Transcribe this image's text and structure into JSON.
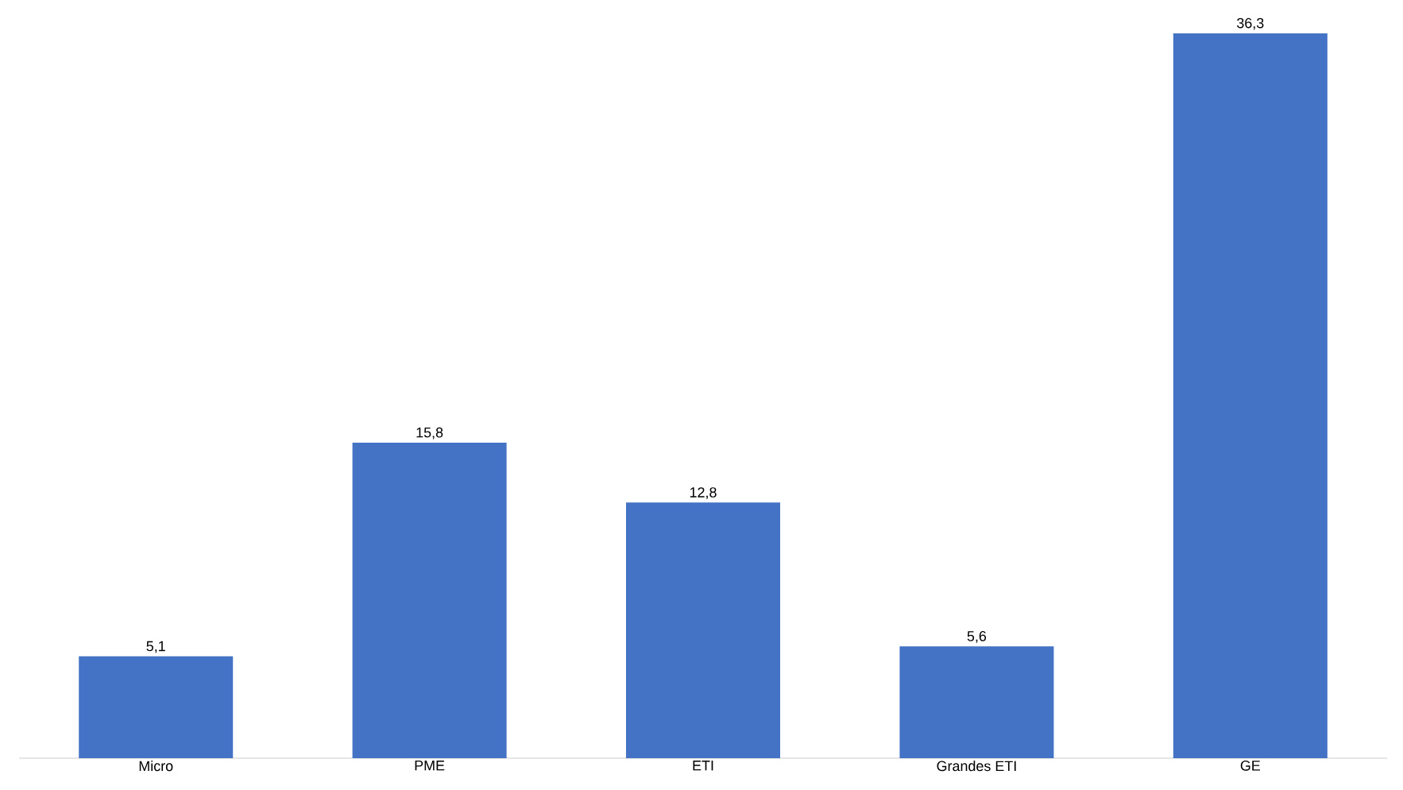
{
  "chart_data": {
    "type": "bar",
    "categories": [
      "Micro",
      "PME",
      "ETI",
      "Grandes ETI",
      "GE"
    ],
    "values": [
      5.1,
      15.8,
      12.8,
      5.6,
      36.3
    ],
    "color": "#4472c4",
    "value_labels": [
      "5,1",
      "15,8",
      "12,8",
      "5,6",
      "36,3"
    ]
  }
}
